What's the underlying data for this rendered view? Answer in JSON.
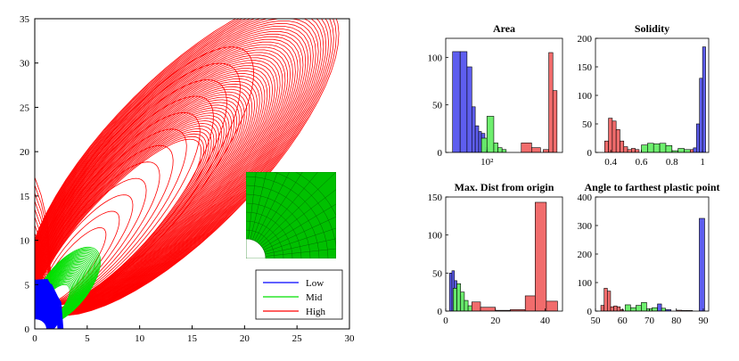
{
  "colors": {
    "low": "#0000ff",
    "mid": "#00e000",
    "high": "#ff0000",
    "hist_low": "#5555ee",
    "hist_mid": "#66ee66",
    "hist_high": "#f06464",
    "mesh": "#00c000"
  },
  "chart_data": [
    {
      "type": "line",
      "id": "main",
      "xlim": [
        0,
        30
      ],
      "ylim": [
        0,
        35
      ],
      "xticks": [
        "0",
        "5",
        "10",
        "15",
        "20",
        "25",
        "30"
      ],
      "yticks": [
        "0",
        "5",
        "10",
        "15",
        "20",
        "25",
        "30",
        "35"
      ],
      "legend": {
        "placement": "bottom-right",
        "entries": [
          {
            "name": "Low",
            "color": "#0000ff"
          },
          {
            "name": "Mid",
            "color": "#00e000"
          },
          {
            "name": "High",
            "color": "#ff0000"
          }
        ]
      },
      "series": [
        {
          "name": "High",
          "family": "high",
          "count": 55,
          "envelope": {
            "x_extent": [
              1.5,
              27
            ],
            "y_extent": [
              0.5,
              33.5
            ]
          }
        },
        {
          "name": "Mid",
          "family": "mid",
          "count": 30,
          "envelope": {
            "x_extent": [
              0.3,
              6
            ],
            "y_extent": [
              0.3,
              8.5
            ]
          }
        },
        {
          "name": "Low",
          "family": "low",
          "count": 20,
          "envelope": {
            "x_extent": [
              0.3,
              2.5
            ],
            "y_extent": [
              0.3,
              5.5
            ]
          }
        }
      ],
      "inset": "mesh-quarter-plate-with-hole"
    },
    {
      "type": "bar",
      "id": "area",
      "title": "Area",
      "xscale": "log",
      "xlim": [
        -1,
        16
      ],
      "ylim": [
        0,
        120
      ],
      "xticks": [
        {
          "v": 5,
          "label": "10²"
        }
      ],
      "yticks": [
        {
          "v": 0,
          "label": "0"
        },
        {
          "v": 50,
          "label": "50"
        },
        {
          "v": 100,
          "label": "100"
        }
      ],
      "bars": [
        {
          "x0": 0,
          "x1": 1.1,
          "y": 106,
          "cls": "low"
        },
        {
          "x0": 1.1,
          "x1": 2.1,
          "y": 106,
          "cls": "low"
        },
        {
          "x0": 2.1,
          "x1": 2.8,
          "y": 90,
          "cls": "low"
        },
        {
          "x0": 2.8,
          "x1": 3.3,
          "y": 48,
          "cls": "low"
        },
        {
          "x0": 3.3,
          "x1": 3.8,
          "y": 28,
          "cls": "low"
        },
        {
          "x0": 3.8,
          "x1": 4.2,
          "y": 22,
          "cls": "low"
        },
        {
          "x0": 4.2,
          "x1": 4.7,
          "y": 20,
          "cls": "low"
        },
        {
          "x0": 4.7,
          "x1": 5.2,
          "y": 5,
          "cls": "low"
        },
        {
          "x0": 4.2,
          "x1": 5.0,
          "y": 15,
          "cls": "mid"
        },
        {
          "x0": 5.0,
          "x1": 6.0,
          "y": 38,
          "cls": "mid"
        },
        {
          "x0": 6.0,
          "x1": 6.6,
          "y": 10,
          "cls": "mid"
        },
        {
          "x0": 6.6,
          "x1": 7.2,
          "y": 5,
          "cls": "mid"
        },
        {
          "x0": 7.2,
          "x1": 7.8,
          "y": 3,
          "cls": "mid"
        },
        {
          "x0": 10,
          "x1": 11.5,
          "y": 10,
          "cls": "high"
        },
        {
          "x0": 11.5,
          "x1": 12.8,
          "y": 5,
          "cls": "high"
        },
        {
          "x0": 13.2,
          "x1": 14,
          "y": 3,
          "cls": "high"
        },
        {
          "x0": 14,
          "x1": 14.6,
          "y": 105,
          "cls": "high"
        },
        {
          "x0": 14.6,
          "x1": 15.2,
          "y": 65,
          "cls": "high"
        }
      ]
    },
    {
      "type": "bar",
      "id": "solidity",
      "title": "Solidity",
      "xlim": [
        0.3,
        1.04
      ],
      "ylim": [
        0,
        200
      ],
      "xticks": [
        {
          "v": 0.4,
          "label": "0.4"
        },
        {
          "v": 0.6,
          "label": "0.6"
        },
        {
          "v": 0.8,
          "label": "0.8"
        },
        {
          "v": 1,
          "label": "1"
        }
      ],
      "yticks": [
        {
          "v": 0,
          "label": "0"
        },
        {
          "v": 50,
          "label": "50"
        },
        {
          "v": 100,
          "label": "100"
        },
        {
          "v": 150,
          "label": "150"
        },
        {
          "v": 200,
          "label": "200"
        }
      ],
      "bars": [
        {
          "x0": 0.36,
          "x1": 0.385,
          "y": 20,
          "cls": "high"
        },
        {
          "x0": 0.385,
          "x1": 0.41,
          "y": 60,
          "cls": "high"
        },
        {
          "x0": 0.41,
          "x1": 0.435,
          "y": 55,
          "cls": "high"
        },
        {
          "x0": 0.435,
          "x1": 0.46,
          "y": 40,
          "cls": "high"
        },
        {
          "x0": 0.46,
          "x1": 0.485,
          "y": 20,
          "cls": "high"
        },
        {
          "x0": 0.485,
          "x1": 0.51,
          "y": 10,
          "cls": "high"
        },
        {
          "x0": 0.51,
          "x1": 0.535,
          "y": 5,
          "cls": "high"
        },
        {
          "x0": 0.535,
          "x1": 0.56,
          "y": 7,
          "cls": "high"
        },
        {
          "x0": 0.56,
          "x1": 0.585,
          "y": 5,
          "cls": "high"
        },
        {
          "x0": 0.6,
          "x1": 0.64,
          "y": 13,
          "cls": "mid"
        },
        {
          "x0": 0.64,
          "x1": 0.68,
          "y": 16,
          "cls": "mid"
        },
        {
          "x0": 0.68,
          "x1": 0.72,
          "y": 15,
          "cls": "mid"
        },
        {
          "x0": 0.72,
          "x1": 0.76,
          "y": 16,
          "cls": "mid"
        },
        {
          "x0": 0.76,
          "x1": 0.8,
          "y": 12,
          "cls": "mid"
        },
        {
          "x0": 0.8,
          "x1": 0.84,
          "y": 3,
          "cls": "mid"
        },
        {
          "x0": 0.84,
          "x1": 0.88,
          "y": 7,
          "cls": "mid"
        },
        {
          "x0": 0.88,
          "x1": 0.92,
          "y": 5,
          "cls": "mid"
        },
        {
          "x0": 0.92,
          "x1": 0.94,
          "y": 5,
          "cls": "high"
        },
        {
          "x0": 0.94,
          "x1": 0.96,
          "y": 8,
          "cls": "low"
        },
        {
          "x0": 0.96,
          "x1": 0.98,
          "y": 50,
          "cls": "low"
        },
        {
          "x0": 0.98,
          "x1": 1.0,
          "y": 130,
          "cls": "low"
        },
        {
          "x0": 1.0,
          "x1": 1.02,
          "y": 185,
          "cls": "low"
        }
      ]
    },
    {
      "type": "bar",
      "id": "maxdist",
      "title": "Max. Dist from origin",
      "xlim": [
        0,
        47
      ],
      "ylim": [
        0,
        150
      ],
      "xticks": [
        {
          "v": 0,
          "label": "0"
        },
        {
          "v": 20,
          "label": "20"
        },
        {
          "v": 40,
          "label": "40"
        }
      ],
      "yticks": [
        {
          "v": 0,
          "label": "0"
        },
        {
          "v": 50,
          "label": "50"
        },
        {
          "v": 100,
          "label": "100"
        },
        {
          "v": 150,
          "label": "150"
        }
      ],
      "bars": [
        {
          "x0": 1.5,
          "x1": 2.5,
          "y": 50,
          "cls": "low"
        },
        {
          "x0": 2.5,
          "x1": 3.5,
          "y": 53,
          "cls": "low"
        },
        {
          "x0": 3.5,
          "x1": 4.5,
          "y": 40,
          "cls": "low"
        },
        {
          "x0": 4.5,
          "x1": 5.5,
          "y": 28,
          "cls": "low"
        },
        {
          "x0": 5.5,
          "x1": 6.5,
          "y": 20,
          "cls": "low"
        },
        {
          "x0": 6.5,
          "x1": 7.5,
          "y": 14,
          "cls": "low"
        },
        {
          "x0": 3,
          "x1": 4.5,
          "y": 30,
          "cls": "mid"
        },
        {
          "x0": 4.5,
          "x1": 6,
          "y": 36,
          "cls": "mid"
        },
        {
          "x0": 6,
          "x1": 7.5,
          "y": 25,
          "cls": "mid"
        },
        {
          "x0": 7.5,
          "x1": 9,
          "y": 14,
          "cls": "mid"
        },
        {
          "x0": 9,
          "x1": 10.5,
          "y": 7,
          "cls": "mid"
        },
        {
          "x0": 10.5,
          "x1": 14,
          "y": 12,
          "cls": "high"
        },
        {
          "x0": 14,
          "x1": 20,
          "y": 5,
          "cls": "high"
        },
        {
          "x0": 20,
          "x1": 26,
          "y": 1,
          "cls": "high"
        },
        {
          "x0": 26,
          "x1": 32,
          "y": 2,
          "cls": "high"
        },
        {
          "x0": 32,
          "x1": 36,
          "y": 20,
          "cls": "high"
        },
        {
          "x0": 36,
          "x1": 40.5,
          "y": 143,
          "cls": "high"
        },
        {
          "x0": 40.5,
          "x1": 45,
          "y": 13,
          "cls": "high"
        }
      ]
    },
    {
      "type": "bar",
      "id": "angle",
      "title": "Angle to farthest plastic point",
      "xlim": [
        50,
        92
      ],
      "ylim": [
        0,
        400
      ],
      "xticks": [
        {
          "v": 50,
          "label": "50"
        },
        {
          "v": 60,
          "label": "60"
        },
        {
          "v": 70,
          "label": "70"
        },
        {
          "v": 80,
          "label": "80"
        },
        {
          "v": 90,
          "label": "90"
        }
      ],
      "yticks": [
        {
          "v": 0,
          "label": "0"
        },
        {
          "v": 100,
          "label": "100"
        },
        {
          "v": 200,
          "label": "200"
        },
        {
          "v": 300,
          "label": "300"
        },
        {
          "v": 400,
          "label": "400"
        }
      ],
      "bars": [
        {
          "x0": 52,
          "x1": 53.2,
          "y": 20,
          "cls": "high"
        },
        {
          "x0": 53.2,
          "x1": 54.4,
          "y": 80,
          "cls": "high"
        },
        {
          "x0": 54.4,
          "x1": 55.6,
          "y": 70,
          "cls": "high"
        },
        {
          "x0": 55.6,
          "x1": 56.8,
          "y": 15,
          "cls": "high"
        },
        {
          "x0": 56.8,
          "x1": 58,
          "y": 18,
          "cls": "high"
        },
        {
          "x0": 58,
          "x1": 59.2,
          "y": 15,
          "cls": "high"
        },
        {
          "x0": 59.2,
          "x1": 60.4,
          "y": 5,
          "cls": "high"
        },
        {
          "x0": 61,
          "x1": 63,
          "y": 22,
          "cls": "mid"
        },
        {
          "x0": 63,
          "x1": 65,
          "y": 12,
          "cls": "mid"
        },
        {
          "x0": 65,
          "x1": 67,
          "y": 20,
          "cls": "mid"
        },
        {
          "x0": 67,
          "x1": 69,
          "y": 30,
          "cls": "mid"
        },
        {
          "x0": 69,
          "x1": 71,
          "y": 8,
          "cls": "mid"
        },
        {
          "x0": 71,
          "x1": 73,
          "y": 12,
          "cls": "mid"
        },
        {
          "x0": 73,
          "x1": 74.5,
          "y": 25,
          "cls": "low"
        },
        {
          "x0": 74.5,
          "x1": 76,
          "y": 10,
          "cls": "mid"
        },
        {
          "x0": 76,
          "x1": 78,
          "y": 5,
          "cls": "low"
        },
        {
          "x0": 80,
          "x1": 82,
          "y": 3,
          "cls": "high"
        },
        {
          "x0": 82,
          "x1": 84,
          "y": 2,
          "cls": "high"
        },
        {
          "x0": 84,
          "x1": 86,
          "y": 2,
          "cls": "high"
        },
        {
          "x0": 88.5,
          "x1": 90.5,
          "y": 325,
          "cls": "low"
        }
      ]
    }
  ]
}
